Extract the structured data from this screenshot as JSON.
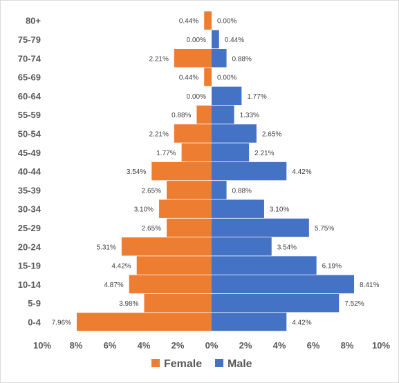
{
  "chart_data": {
    "type": "bar",
    "orientation": "horizontal",
    "layout": "population-pyramid",
    "categories": [
      "0-4",
      "5-9",
      "10-14",
      "15-19",
      "20-24",
      "25-29",
      "30-34",
      "35-39",
      "40-44",
      "45-49",
      "50-54",
      "55-59",
      "60-64",
      "65-69",
      "70-74",
      "75-79",
      "80+"
    ],
    "series": [
      {
        "name": "Female",
        "color": "#ed7d31",
        "values": [
          7.96,
          3.98,
          4.87,
          4.42,
          5.31,
          2.65,
          3.1,
          2.65,
          3.54,
          1.77,
          2.21,
          0.88,
          0.0,
          0.44,
          2.21,
          0.0,
          0.44
        ],
        "labels": [
          "7.96%",
          "3.98%",
          "4.87%",
          "4.42%",
          "5.31%",
          "2.65%",
          "3.10%",
          "2.65%",
          "3.54%",
          "1.77%",
          "2.21%",
          "0.88%",
          "0.00%",
          "0.44%",
          "2.21%",
          "0.00%",
          "0.44%"
        ]
      },
      {
        "name": "Male",
        "color": "#4472c4",
        "values": [
          4.42,
          7.52,
          8.41,
          6.19,
          3.54,
          5.75,
          3.1,
          0.88,
          4.42,
          2.21,
          2.65,
          1.33,
          1.77,
          0.0,
          0.88,
          0.44,
          0.0
        ],
        "labels": [
          "4.42%",
          "7.52%",
          "8.41%",
          "6.19%",
          "3.54%",
          "5.75%",
          "3.10%",
          "0.88%",
          "4.42%",
          "2.21%",
          "2.65%",
          "1.33%",
          "1.77%",
          "0.00%",
          "0.88%",
          "0.44%",
          "0.00%"
        ]
      }
    ],
    "xlim": [
      -10,
      10
    ],
    "xticks": [
      -10,
      -8,
      -6,
      -4,
      -2,
      0,
      2,
      4,
      6,
      8,
      10
    ],
    "xtick_labels": [
      "10%",
      "8%",
      "6%",
      "4%",
      "2%",
      "0%",
      "2%",
      "4%",
      "6%",
      "8%",
      "10%"
    ],
    "grid": false,
    "legend": {
      "position": "bottom",
      "entries": [
        "Female",
        "Male"
      ]
    }
  }
}
